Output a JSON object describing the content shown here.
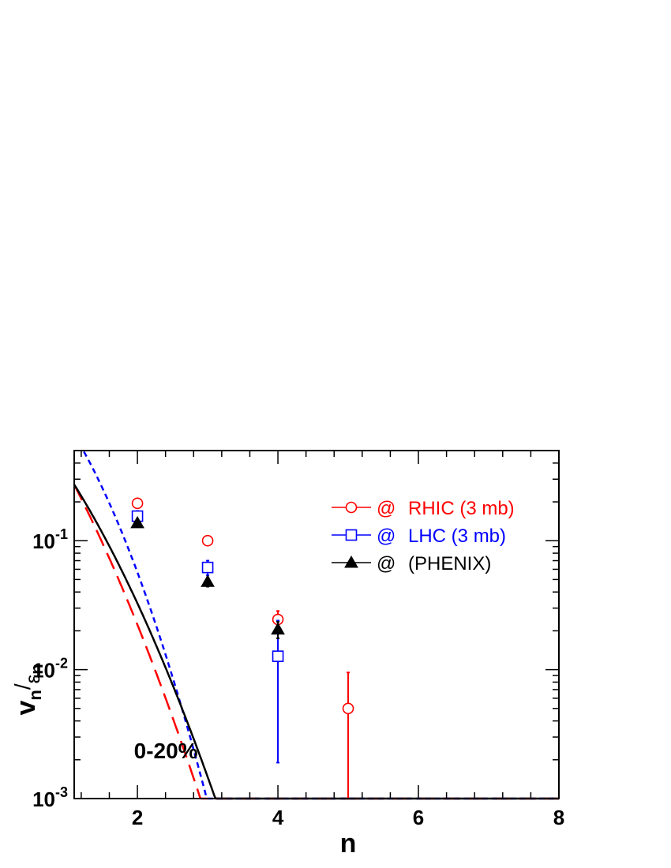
{
  "chart_data": {
    "type": "scatter",
    "title": "",
    "xlabel": "n",
    "ylabel_main": "v",
    "ylabel_main_sub": "n",
    "ylabel_slash": "/",
    "ylabel_den": "ε",
    "ylabel_den_sub": "n",
    "xlim": [
      1.1,
      8
    ],
    "ylim": [
      0.001,
      0.5
    ],
    "yscale": "log",
    "xticks": [
      {
        "value": 2,
        "label": "2"
      },
      {
        "value": 4,
        "label": "4"
      },
      {
        "value": 6,
        "label": "6"
      },
      {
        "value": 8,
        "label": "8"
      }
    ],
    "yticks": [
      {
        "value": 0.1,
        "base": "10",
        "exp": "-1"
      },
      {
        "value": 0.01,
        "base": "10",
        "exp": "-2"
      },
      {
        "value": 0.001,
        "base": "10",
        "exp": "-3"
      }
    ],
    "annotation": "0-20%",
    "legend_position": "top-right",
    "series": [
      {
        "label_marker": "@",
        "label_text": "RHIC (3 mb)",
        "color": "#ff0000",
        "marker": "open-circle",
        "line_style": "long-dash",
        "points": [
          {
            "x": 2,
            "y": 0.195
          },
          {
            "x": 3,
            "y": 0.1
          },
          {
            "x": 4,
            "y": 0.0245,
            "err_low": 0.0035,
            "err_high": 0.004
          },
          {
            "x": 5,
            "y": 0.005,
            "err_low": 0.005,
            "err_high": 0.0045
          }
        ],
        "fit": {
          "a": 2.5,
          "b": 1.6,
          "c": 0.38
        }
      },
      {
        "label_marker": "@",
        "label_text": "LHC (3 mb)",
        "color": "#0000ff",
        "marker": "open-square",
        "line_style": "short-dash",
        "points": [
          {
            "x": 2,
            "y": 0.155,
            "err_low": 0.015,
            "err_high": 0.015
          },
          {
            "x": 3,
            "y": 0.062,
            "err_low": 0.008,
            "err_high": 0.008
          },
          {
            "x": 4,
            "y": 0.0127,
            "err_low": 0.0108,
            "err_high": 0.0113
          }
        ],
        "fit": {
          "a": 2.75,
          "b": 0.5,
          "c": 0.72
        }
      },
      {
        "label_marker": "@",
        "label_text": "(PHENIX)",
        "color": "#000000",
        "marker": "filled-triangle",
        "line_style": "solid",
        "points": [
          {
            "x": 2,
            "y": 0.137,
            "err_low": 0.008,
            "err_high": 0.008
          },
          {
            "x": 3,
            "y": 0.048,
            "err_low": 0.004,
            "err_high": 0.004
          },
          {
            "x": 4,
            "y": 0.0205,
            "err_low": 0.003,
            "err_high": 0.003
          }
        ],
        "fit": {
          "a": 1.55,
          "b": 1.15,
          "c": 0.39
        }
      }
    ]
  }
}
